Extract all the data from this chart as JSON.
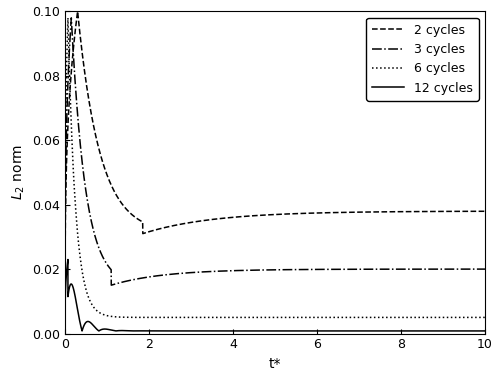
{
  "title": "",
  "xlabel": "t*",
  "ylabel": "$L_2$ norm",
  "xlim": [
    0,
    10
  ],
  "ylim": [
    0,
    0.1
  ],
  "yticks": [
    0.0,
    0.02,
    0.04,
    0.06,
    0.08,
    0.1
  ],
  "xticks": [
    0,
    2,
    4,
    6,
    8,
    10
  ],
  "legend_labels": [
    "2 cycles",
    "3 cycles",
    "6 cycles",
    "12 cycles"
  ],
  "legend_styles": [
    "--",
    "-.",
    ":",
    "-"
  ],
  "line_color": "#000000",
  "background_color": "#ffffff",
  "figsize": [
    5.0,
    3.79
  ],
  "dpi": 100
}
